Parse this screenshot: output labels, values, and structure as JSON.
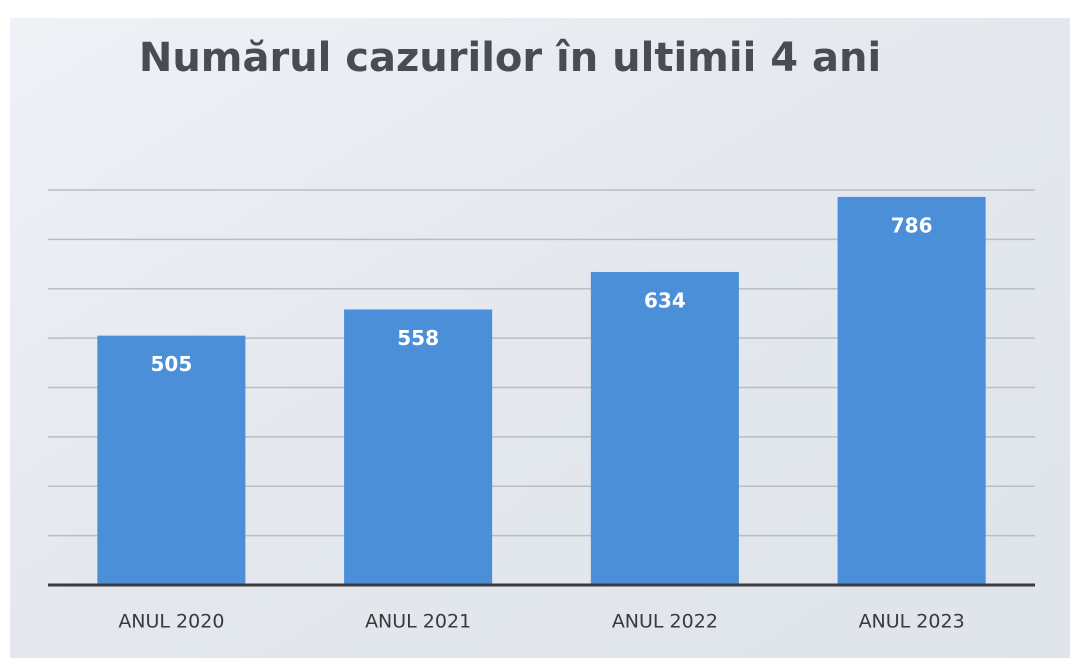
{
  "chart_data": {
    "type": "bar",
    "title": "Numărul cazurilor în ultimii 4 ani",
    "categories": [
      "ANUL 2020",
      "ANUL 2021",
      "ANUL 2022",
      "ANUL 2023"
    ],
    "values": [
      505,
      558,
      634,
      786
    ],
    "color": "#4a8fd8",
    "ylim": [
      0,
      800
    ],
    "yticks": [
      0,
      100,
      200,
      300,
      400,
      500,
      600,
      700,
      800
    ],
    "grid": true
  }
}
